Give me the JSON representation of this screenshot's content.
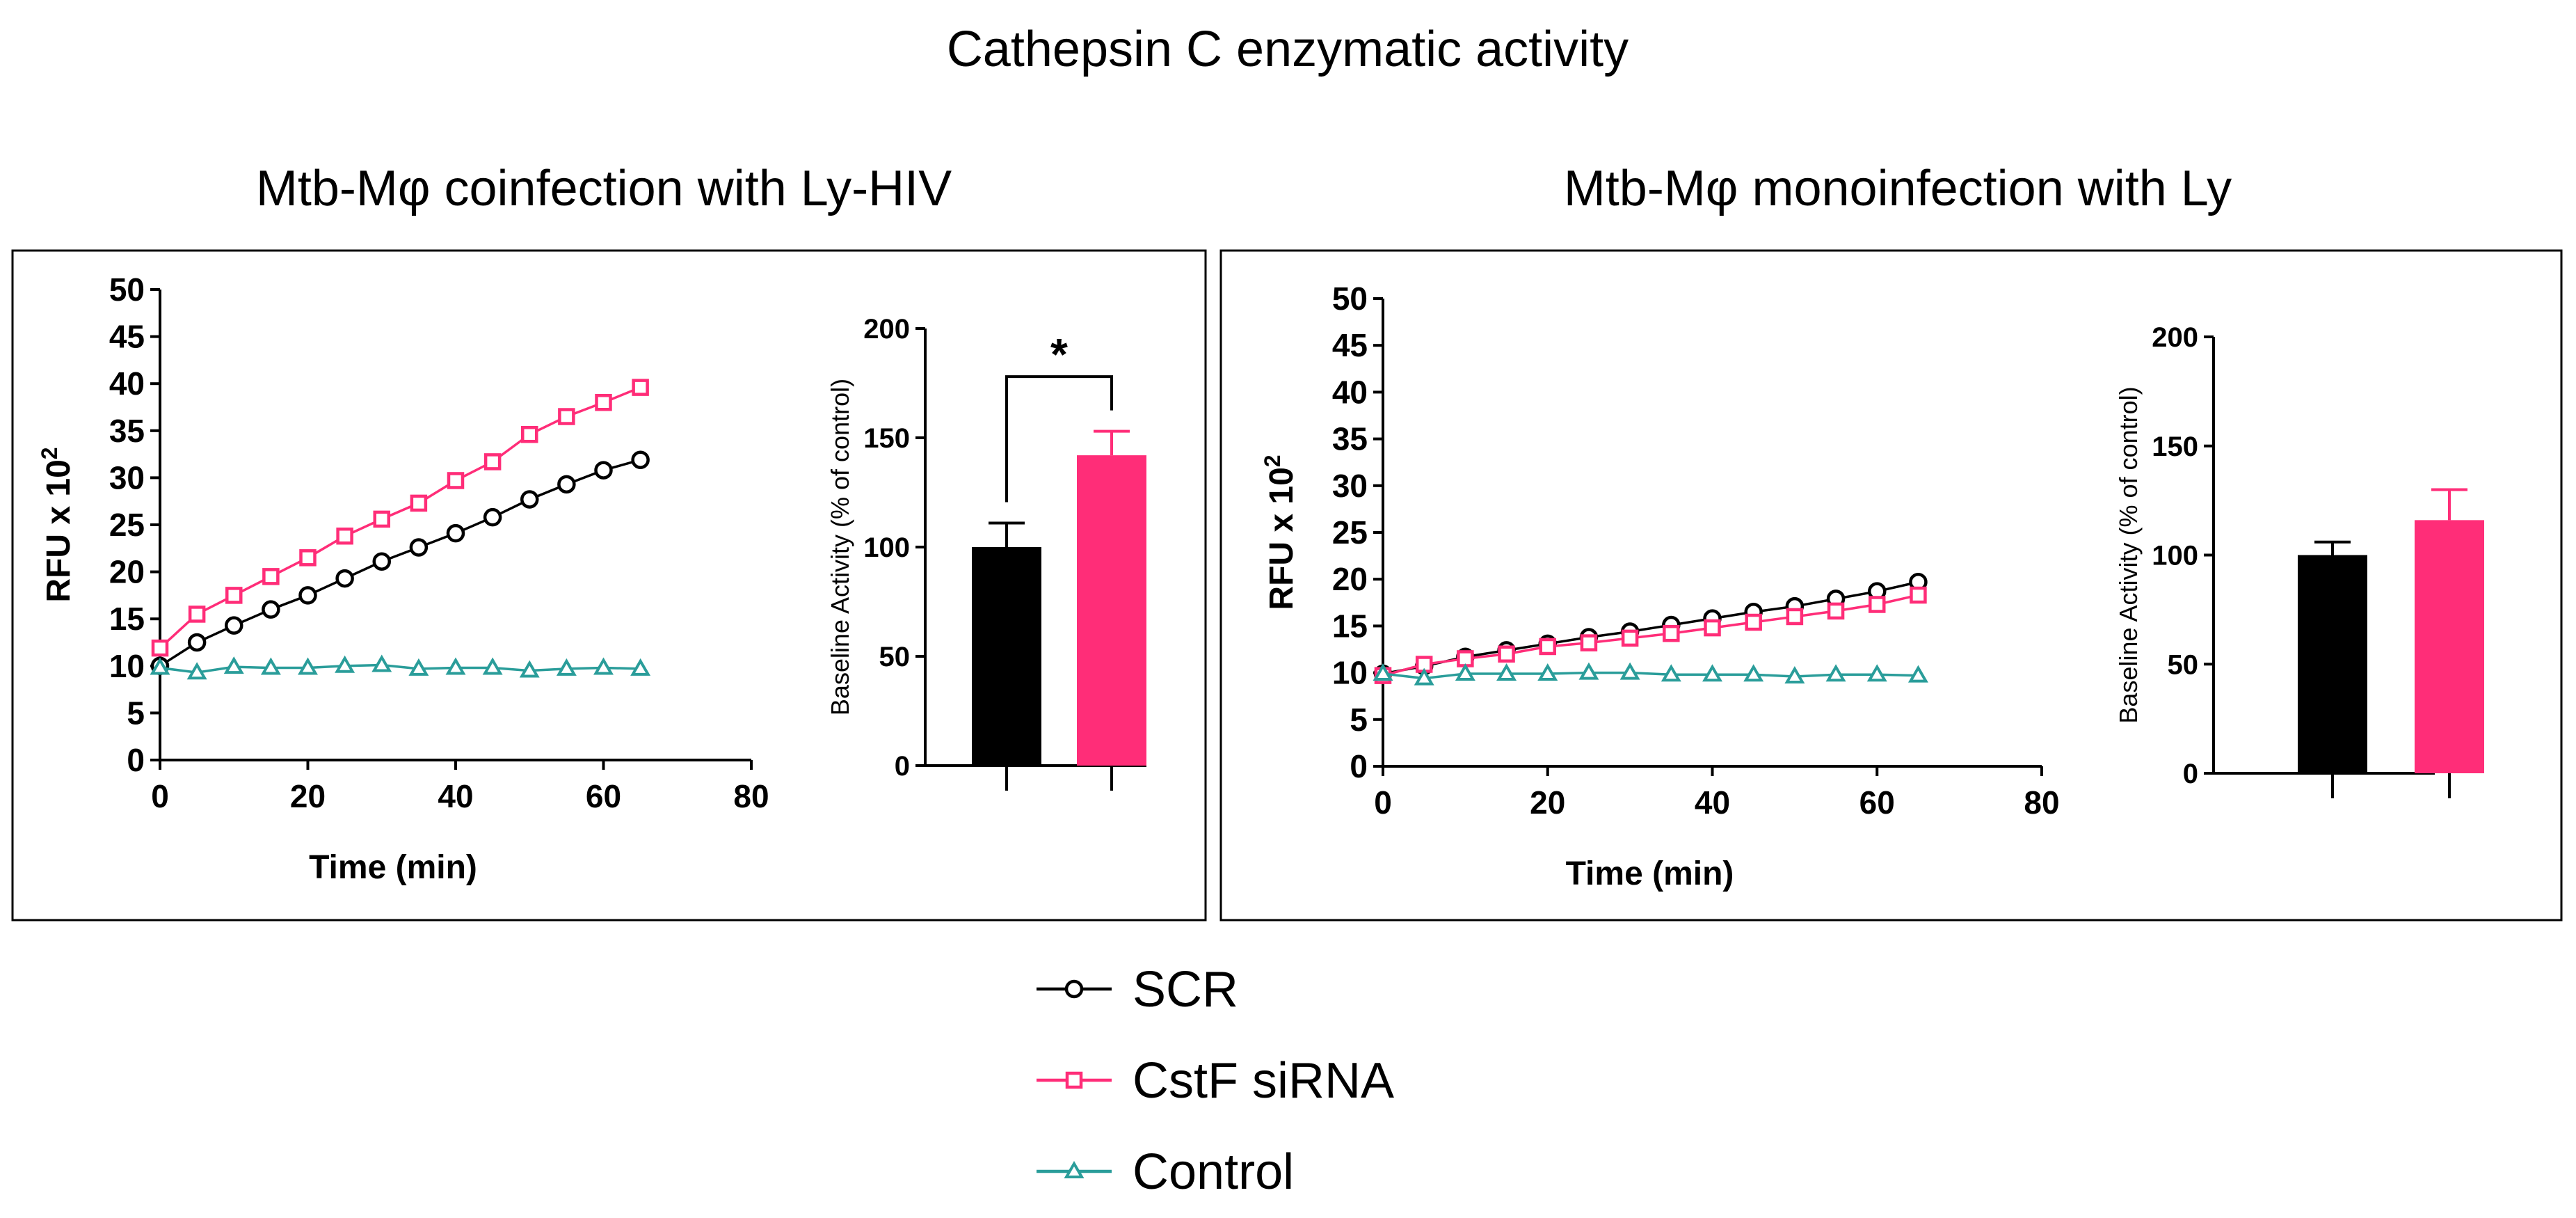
{
  "figure": {
    "title": "Cathepsin C enzymatic activity",
    "legend": [
      {
        "name": "SCR",
        "color": "#000000",
        "marker": "circle"
      },
      {
        "name": "CstF siRNA",
        "color": "#ff2d78",
        "marker": "square"
      },
      {
        "name": "Control",
        "color": "#2a9d9a",
        "marker": "triangle"
      }
    ]
  },
  "panels": [
    {
      "subtitle": "Mtb-Mφ coinfection with Ly-HIV",
      "line_label_parts": [
        "RFU x 10",
        "2"
      ],
      "bar_label": "Baseline Activity (% of control)",
      "significance": "*"
    },
    {
      "subtitle": "Mtb-Mφ monoinfection with Ly",
      "line_label_parts": [
        "RFU x 10",
        "2"
      ],
      "bar_label": "Baseline Activity (% of control)",
      "significance": ""
    }
  ],
  "chart_data": [
    {
      "type": "line",
      "xlabel": "Time (min)",
      "ylabel": "RFU x 10²",
      "xlim": [
        0,
        80
      ],
      "ylim": [
        0,
        50
      ],
      "xticks": [
        0,
        20,
        40,
        60,
        80
      ],
      "yticks": [
        0,
        5,
        10,
        15,
        20,
        25,
        30,
        35,
        40,
        45,
        50
      ],
      "x": [
        0,
        5,
        10,
        15,
        20,
        25,
        30,
        35,
        40,
        45,
        50,
        55,
        60,
        65
      ],
      "series": [
        {
          "name": "SCR",
          "color": "#000000",
          "marker": "circle",
          "values": [
            10.0,
            12.5,
            14.3,
            16.0,
            17.5,
            19.3,
            21.1,
            22.6,
            24.1,
            25.8,
            27.7,
            29.3,
            30.8,
            31.9
          ]
        },
        {
          "name": "CstF siRNA",
          "color": "#ff2d78",
          "marker": "square",
          "values": [
            11.9,
            15.5,
            17.5,
            19.5,
            21.5,
            23.8,
            25.6,
            27.3,
            29.7,
            31.7,
            34.6,
            36.5,
            38.0,
            39.6
          ]
        },
        {
          "name": "Control",
          "color": "#2a9d9a",
          "marker": "triangle",
          "values": [
            9.8,
            9.3,
            9.9,
            9.8,
            9.8,
            10.0,
            10.1,
            9.7,
            9.8,
            9.8,
            9.5,
            9.7,
            9.8,
            9.7
          ]
        }
      ]
    },
    {
      "type": "bar",
      "ylabel": "Baseline Activity (% of control)",
      "ylim": [
        0,
        200
      ],
      "yticks": [
        0,
        50,
        100,
        150,
        200
      ],
      "categories": [
        "SCR",
        "CstF siRNA"
      ],
      "values": [
        100,
        142
      ],
      "errors": [
        11,
        11
      ],
      "colors": [
        "#000000",
        "#ff2d78"
      ]
    },
    {
      "type": "line",
      "xlabel": "Time (min)",
      "ylabel": "RFU x 10²",
      "xlim": [
        0,
        80
      ],
      "ylim": [
        0,
        50
      ],
      "xticks": [
        0,
        20,
        40,
        60,
        80
      ],
      "yticks": [
        0,
        5,
        10,
        15,
        20,
        25,
        30,
        35,
        40,
        45,
        50
      ],
      "x": [
        0,
        5,
        10,
        15,
        20,
        25,
        30,
        35,
        40,
        45,
        50,
        55,
        60,
        65
      ],
      "series": [
        {
          "name": "SCR",
          "color": "#000000",
          "marker": "circle",
          "values": [
            9.9,
            10.7,
            11.7,
            12.4,
            13.1,
            13.8,
            14.4,
            15.1,
            15.8,
            16.5,
            17.1,
            17.9,
            18.7,
            19.7
          ]
        },
        {
          "name": "CstF siRNA",
          "color": "#ff2d78",
          "marker": "square",
          "values": [
            9.7,
            10.9,
            11.5,
            12.0,
            12.8,
            13.2,
            13.7,
            14.2,
            14.8,
            15.4,
            16.0,
            16.6,
            17.3,
            18.3
          ]
        },
        {
          "name": "Control",
          "color": "#2a9d9a",
          "marker": "triangle",
          "values": [
            9.9,
            9.4,
            9.9,
            9.9,
            9.9,
            10.0,
            10.0,
            9.8,
            9.8,
            9.8,
            9.6,
            9.8,
            9.8,
            9.7
          ]
        }
      ]
    },
    {
      "type": "bar",
      "ylabel": "Baseline Activity (% of control)",
      "ylim": [
        0,
        200
      ],
      "yticks": [
        0,
        50,
        100,
        150,
        200
      ],
      "categories": [
        "SCR",
        "CstF siRNA"
      ],
      "values": [
        100,
        116
      ],
      "errors": [
        6,
        14
      ],
      "colors": [
        "#000000",
        "#ff2d78"
      ]
    }
  ]
}
